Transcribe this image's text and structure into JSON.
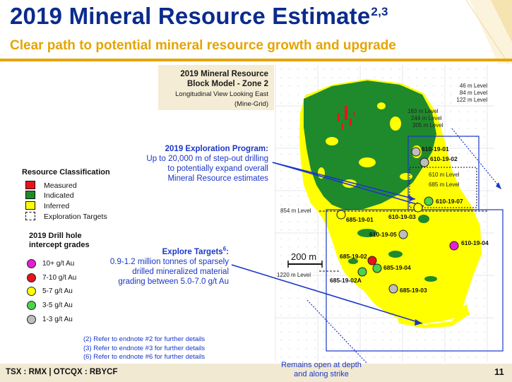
{
  "header": {
    "title": "2019 Mineral Resource Estimate",
    "title_sup": "2,3",
    "subtitle": "Clear path to potential mineral resource growth and upgrade"
  },
  "model_box": {
    "line1": "2019 Mineral Resource",
    "line2": "Block Model - Zone 2",
    "line3": "Longitudinal View Looking East",
    "line4": "(Mine-Grid)"
  },
  "exploration_program": {
    "heading": "2019 Exploration Program:",
    "line1": "Up to 20,000 m of step-out drilling",
    "line2": "to potentially expand overall",
    "line3": "Mineral Resource estimates"
  },
  "explore_targets": {
    "heading": "Explore Targets",
    "heading_sup": "6",
    "heading_colon": ":",
    "line1": "0.9-1.2 million tonnes of sparsely",
    "line2": "drilled mineralized material",
    "line3": "grading between 5.0-7.0 g/t Au"
  },
  "legend": {
    "title": "Resource Classification",
    "items": [
      {
        "label": "Measured",
        "color": "#e8141c"
      },
      {
        "label": "Indicated",
        "color": "#1f8a2c"
      },
      {
        "label": "Inferred",
        "color": "#ffff00"
      },
      {
        "label": "Exploration Targets",
        "color": "#ffffff"
      }
    ]
  },
  "drill_legend": {
    "title_line1": "2019 Drill hole",
    "title_line2": "intercept grades",
    "items": [
      {
        "label": "10+ g/t Au",
        "color": "#e61ed6"
      },
      {
        "label": "7-10 g/t Au",
        "color": "#e8141c"
      },
      {
        "label": "5-7 g/t Au",
        "color": "#ffff00"
      },
      {
        "label": "3-5 g/t Au",
        "color": "#4cd24c"
      },
      {
        "label": "1-3 g/t Au",
        "color": "#bdbdbd"
      }
    ]
  },
  "levels": {
    "l46": "46 m Level",
    "l84": "84 m Level",
    "l122": "122 m Level",
    "l183": "183 m Level",
    "l244": "244 m Level",
    "l305": "305 m Level",
    "l610": "610 m Level",
    "l685": "685 m Level",
    "l854": "854 m Level",
    "l1220": "1220 m Level"
  },
  "scale_bar": "200 m",
  "drill_holes": [
    {
      "label": "610-19-01",
      "grade_color": "#bdbdbd"
    },
    {
      "label": "610-19-02",
      "grade_color": "#bdbdbd"
    },
    {
      "label": "610-19-07",
      "grade_color": "#4cd24c"
    },
    {
      "label": "685-19-01",
      "grade_color": "#ffff00"
    },
    {
      "label": "610-19-03",
      "grade_color": "#ffff00"
    },
    {
      "label": "610-19-05",
      "grade_color": "#bdbdbd"
    },
    {
      "label": "610-19-04",
      "grade_color": "#e61ed6"
    },
    {
      "label": "685-19-02",
      "grade_color": "#e8141c"
    },
    {
      "label": "685-19-04",
      "grade_color": "#4cd24c"
    },
    {
      "label": "685-19-02A",
      "grade_color": "#4cd24c"
    },
    {
      "label": "685-19-03",
      "grade_color": "#bdbdbd"
    }
  ],
  "endnotes": {
    "n2": "(2) Refer to endnote #2 for further details",
    "n3": "(3) Refer to endnote #3 for further details",
    "n6": "(6) Refer to endnote #6 for further details"
  },
  "remains_open": {
    "line1": "Remains open at depth",
    "line2": "and along strike"
  },
  "footer": {
    "ticker": "TSX : RMX | OTCQX : RBYCF",
    "page": "11"
  },
  "colors": {
    "title_blue": "#0b2b8c",
    "accent_gold": "#e5a400",
    "annotation_blue": "#1a36c9",
    "inferred_yellow": "#ffff00",
    "indicated_green": "#1f8a2c"
  }
}
